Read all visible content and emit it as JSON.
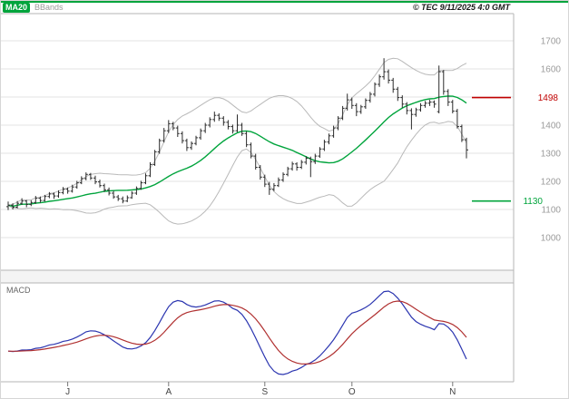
{
  "header": {
    "ma20_label": "MA20",
    "bbands_label": "BBands",
    "copyright": "© TEC 9/11/2025 4:0 GMT"
  },
  "colors": {
    "top_bar": "#00a43c",
    "ma20": "#00a43c",
    "bbands": "#b9b9b9",
    "candle": "#2b2b2b",
    "grid": "#e3e3e3",
    "axis_text": "#9b9b9b",
    "resistance": "#c00000",
    "support": "#00a43c",
    "macd_line": "#2b35b0",
    "macd_signal": "#b03030",
    "panel_border": "#b5b5b5"
  },
  "chart_data": {
    "type": "candlestick",
    "title": "",
    "macd_panel_label": "MACD",
    "legend": [
      "MA20",
      "BBands",
      "MACD"
    ],
    "price_axis": {
      "grid_levels": [
        1700,
        1600,
        1500,
        1400,
        1300,
        1200,
        1100,
        1000
      ],
      "tick_labels": [
        1700,
        1600,
        1400,
        1300,
        1200,
        1100,
        1000
      ],
      "ylim": [
        980,
        1800
      ]
    },
    "x_axis": {
      "month_labels": [
        "J",
        "A",
        "S",
        "O",
        "N"
      ],
      "month_start_indices": [
        13,
        35,
        56,
        75,
        97
      ]
    },
    "levels": {
      "resistance": 1498,
      "support": 1130
    },
    "indicators": {
      "ma_period": 20,
      "bb_period": 20,
      "bb_mult": 2,
      "macd": [
        12,
        26,
        9
      ]
    },
    "ohlc": [
      [
        1110,
        1128,
        1098,
        1115
      ],
      [
        1115,
        1122,
        1100,
        1108
      ],
      [
        1108,
        1130,
        1104,
        1122
      ],
      [
        1122,
        1140,
        1116,
        1130
      ],
      [
        1130,
        1134,
        1108,
        1118
      ],
      [
        1118,
        1133,
        1112,
        1125
      ],
      [
        1125,
        1148,
        1120,
        1140
      ],
      [
        1140,
        1146,
        1124,
        1132
      ],
      [
        1132,
        1152,
        1128,
        1146
      ],
      [
        1146,
        1162,
        1140,
        1155
      ],
      [
        1155,
        1160,
        1138,
        1148
      ],
      [
        1148,
        1168,
        1142,
        1160
      ],
      [
        1160,
        1180,
        1154,
        1172
      ],
      [
        1172,
        1178,
        1156,
        1165
      ],
      [
        1165,
        1188,
        1160,
        1180
      ],
      [
        1180,
        1202,
        1174,
        1195
      ],
      [
        1195,
        1218,
        1190,
        1210
      ],
      [
        1210,
        1232,
        1204,
        1225
      ],
      [
        1225,
        1230,
        1205,
        1212
      ],
      [
        1212,
        1220,
        1190,
        1198
      ],
      [
        1198,
        1206,
        1178,
        1185
      ],
      [
        1185,
        1192,
        1162,
        1170
      ],
      [
        1170,
        1178,
        1150,
        1158
      ],
      [
        1158,
        1166,
        1138,
        1145
      ],
      [
        1145,
        1152,
        1130,
        1138
      ],
      [
        1138,
        1146,
        1122,
        1130
      ],
      [
        1130,
        1150,
        1126,
        1142
      ],
      [
        1142,
        1165,
        1138,
        1158
      ],
      [
        1158,
        1182,
        1152,
        1175
      ],
      [
        1175,
        1202,
        1170,
        1195
      ],
      [
        1195,
        1228,
        1190,
        1220
      ],
      [
        1220,
        1268,
        1215,
        1260
      ],
      [
        1260,
        1312,
        1255,
        1305
      ],
      [
        1305,
        1352,
        1298,
        1345
      ],
      [
        1345,
        1390,
        1338,
        1380
      ],
      [
        1380,
        1418,
        1372,
        1405
      ],
      [
        1405,
        1412,
        1382,
        1390
      ],
      [
        1390,
        1398,
        1358,
        1370
      ],
      [
        1370,
        1378,
        1335,
        1345
      ],
      [
        1345,
        1352,
        1308,
        1320
      ],
      [
        1320,
        1342,
        1312,
        1335
      ],
      [
        1335,
        1362,
        1328,
        1355
      ],
      [
        1355,
        1388,
        1348,
        1380
      ],
      [
        1380,
        1408,
        1372,
        1400
      ],
      [
        1400,
        1428,
        1392,
        1420
      ],
      [
        1420,
        1448,
        1412,
        1435
      ],
      [
        1435,
        1442,
        1415,
        1425
      ],
      [
        1425,
        1432,
        1398,
        1410
      ],
      [
        1410,
        1418,
        1385,
        1395
      ],
      [
        1395,
        1402,
        1370,
        1380
      ],
      [
        1380,
        1438,
        1375,
        1400
      ],
      [
        1400,
        1408,
        1362,
        1370
      ],
      [
        1370,
        1378,
        1322,
        1330
      ],
      [
        1330,
        1338,
        1282,
        1290
      ],
      [
        1290,
        1298,
        1242,
        1250
      ],
      [
        1250,
        1258,
        1206,
        1215
      ],
      [
        1215,
        1224,
        1180,
        1190
      ],
      [
        1190,
        1198,
        1152,
        1172
      ],
      [
        1172,
        1194,
        1165,
        1185
      ],
      [
        1185,
        1214,
        1180,
        1205
      ],
      [
        1205,
        1232,
        1198,
        1225
      ],
      [
        1225,
        1252,
        1218,
        1245
      ],
      [
        1245,
        1270,
        1238,
        1262
      ],
      [
        1262,
        1268,
        1238,
        1250
      ],
      [
        1250,
        1276,
        1244,
        1268
      ],
      [
        1268,
        1290,
        1260,
        1282
      ],
      [
        1282,
        1288,
        1215,
        1270
      ],
      [
        1270,
        1298,
        1262,
        1290
      ],
      [
        1290,
        1322,
        1284,
        1315
      ],
      [
        1315,
        1348,
        1308,
        1340
      ],
      [
        1340,
        1370,
        1332,
        1362
      ],
      [
        1362,
        1398,
        1355,
        1390
      ],
      [
        1390,
        1432,
        1382,
        1425
      ],
      [
        1425,
        1468,
        1418,
        1460
      ],
      [
        1460,
        1512,
        1452,
        1490
      ],
      [
        1490,
        1498,
        1458,
        1470
      ],
      [
        1470,
        1478,
        1432,
        1448
      ],
      [
        1448,
        1472,
        1440,
        1465
      ],
      [
        1465,
        1495,
        1458,
        1488
      ],
      [
        1488,
        1518,
        1480,
        1510
      ],
      [
        1510,
        1552,
        1502,
        1545
      ],
      [
        1545,
        1580,
        1536,
        1572
      ],
      [
        1572,
        1638,
        1562,
        1590
      ],
      [
        1590,
        1598,
        1548,
        1560
      ],
      [
        1560,
        1568,
        1515,
        1528
      ],
      [
        1528,
        1536,
        1486,
        1498
      ],
      [
        1498,
        1506,
        1462,
        1475
      ],
      [
        1475,
        1482,
        1438,
        1452
      ],
      [
        1452,
        1460,
        1385,
        1438
      ],
      [
        1438,
        1462,
        1430,
        1455
      ],
      [
        1455,
        1478,
        1448,
        1470
      ],
      [
        1470,
        1486,
        1462,
        1478
      ],
      [
        1478,
        1490,
        1468,
        1482
      ],
      [
        1482,
        1488,
        1462,
        1475
      ],
      [
        1448,
        1612,
        1442,
        1590
      ],
      [
        1590,
        1596,
        1508,
        1520
      ],
      [
        1520,
        1528,
        1468,
        1482
      ],
      [
        1482,
        1490,
        1442,
        1450
      ],
      [
        1450,
        1458,
        1388,
        1395
      ],
      [
        1395,
        1402,
        1340,
        1348
      ],
      [
        1348,
        1355,
        1282,
        1312
      ]
    ]
  }
}
